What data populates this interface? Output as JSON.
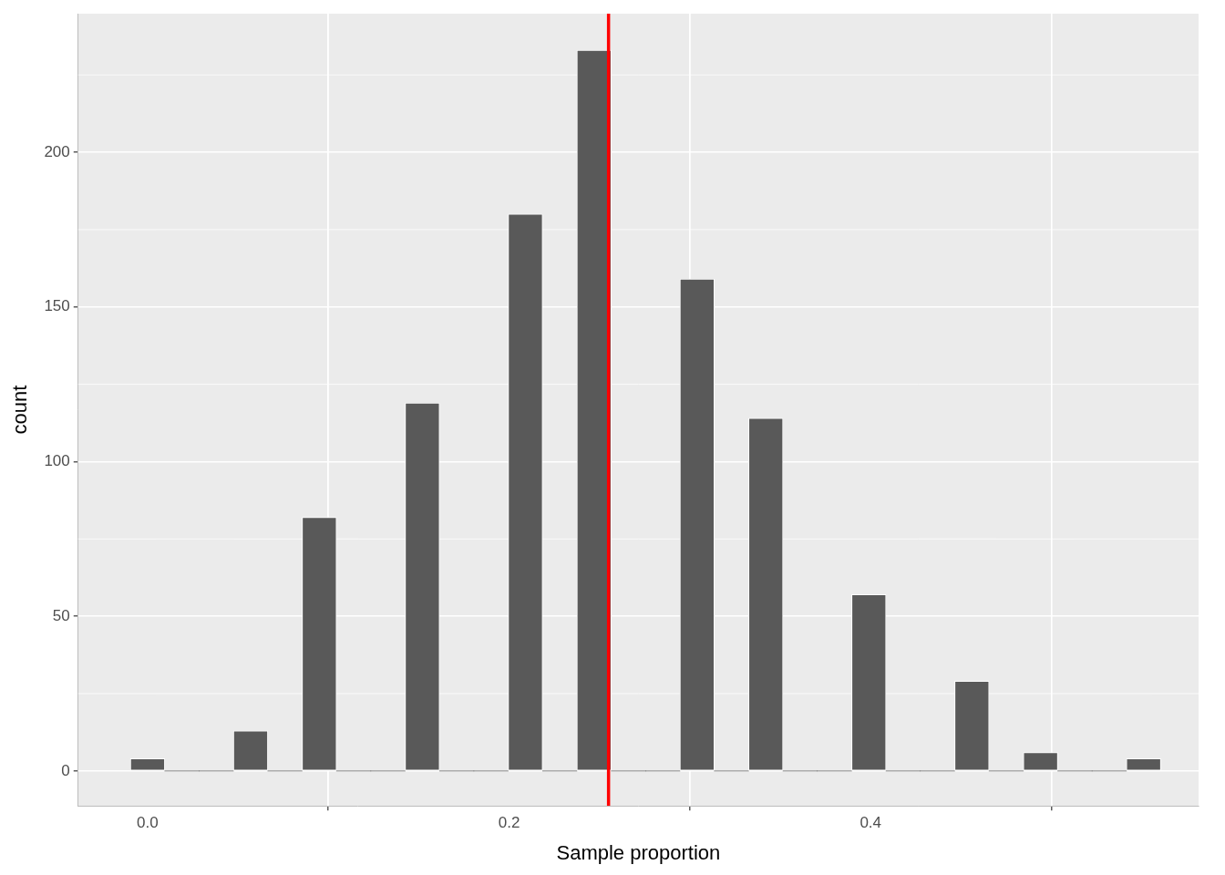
{
  "chart_data": {
    "type": "histogram",
    "x_label": "Sample proportion",
    "y_label": "count",
    "bins": [
      -0.0095,
      0.0095,
      0.0285,
      0.0475,
      0.0665,
      0.0855,
      0.1045,
      0.1235,
      0.1425,
      0.1615,
      0.1805,
      0.1995,
      0.2185,
      0.2375,
      0.2565,
      0.2755,
      0.2945,
      0.3135,
      0.3325,
      0.3515,
      0.3705,
      0.3895,
      0.4085,
      0.4275,
      0.4465,
      0.4655,
      0.4845,
      0.5035,
      0.5225,
      0.5415,
      0.5605
    ],
    "counts": [
      4,
      0,
      0,
      13,
      0,
      82,
      0,
      0,
      119,
      0,
      0,
      180,
      0,
      233,
      0,
      0,
      159,
      0,
      114,
      0,
      0,
      57,
      0,
      0,
      29,
      0,
      6,
      0,
      0,
      4
    ],
    "color": "#595959",
    "vline": {
      "x": 0.255,
      "color": "#ff0000"
    },
    "xlim": [
      -0.0384,
      0.5814
    ],
    "xticks": [
      {
        "value": 0,
        "label": "0.0"
      },
      {
        "value": 0.2,
        "label": "0.2"
      },
      {
        "value": 0.4,
        "label": "0.4"
      }
    ],
    "ylim": [
      -11.3,
      244.8
    ],
    "yticks": [
      0,
      50,
      100,
      150,
      200
    ],
    "grid": true
  }
}
